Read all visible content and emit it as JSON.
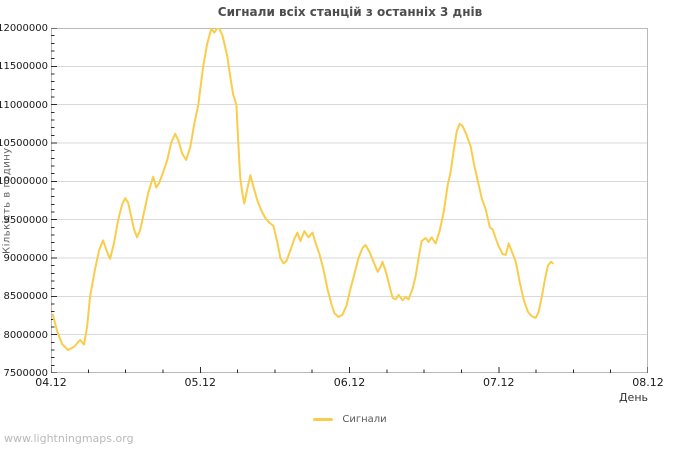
{
  "title": "Сигнали всіх станцій з останніх 3 днів",
  "watermark": "www.lightningmaps.org",
  "legend": {
    "label": "Сигнали"
  },
  "chart_data": {
    "type": "line",
    "title": "Сигнали всіх станцій з останніх 3 днів",
    "xlabel": "День",
    "ylabel": "Кількість в годину",
    "x_ticks": [
      "04.12",
      "05.12",
      "06.12",
      "07.12",
      "08.12"
    ],
    "x_minor_per_major": 4,
    "ylim": [
      7500000,
      12000000
    ],
    "y_tick_step": 500000,
    "y_minor_step": 100000,
    "grid": "horizontal-only",
    "legend_position": "bottom-center",
    "series": [
      {
        "name": "Сигнали",
        "color": "#f9cd4c",
        "x_unit": "days-after-04.12",
        "points": [
          [
            0.013,
            8260000
          ],
          [
            0.04,
            8050000
          ],
          [
            0.074,
            7880000
          ],
          [
            0.114,
            7800000
          ],
          [
            0.154,
            7840000
          ],
          [
            0.195,
            7930000
          ],
          [
            0.221,
            7870000
          ],
          [
            0.242,
            8100000
          ],
          [
            0.262,
            8500000
          ],
          [
            0.295,
            8850000
          ],
          [
            0.322,
            9100000
          ],
          [
            0.349,
            9230000
          ],
          [
            0.376,
            9080000
          ],
          [
            0.396,
            8990000
          ],
          [
            0.423,
            9200000
          ],
          [
            0.45,
            9500000
          ],
          [
            0.477,
            9700000
          ],
          [
            0.497,
            9780000
          ],
          [
            0.517,
            9720000
          ],
          [
            0.537,
            9550000
          ],
          [
            0.557,
            9370000
          ],
          [
            0.577,
            9270000
          ],
          [
            0.597,
            9360000
          ],
          [
            0.624,
            9600000
          ],
          [
            0.651,
            9850000
          ],
          [
            0.685,
            10060000
          ],
          [
            0.705,
            9920000
          ],
          [
            0.725,
            9980000
          ],
          [
            0.752,
            10120000
          ],
          [
            0.779,
            10280000
          ],
          [
            0.805,
            10500000
          ],
          [
            0.832,
            10620000
          ],
          [
            0.852,
            10540000
          ],
          [
            0.879,
            10360000
          ],
          [
            0.906,
            10280000
          ],
          [
            0.933,
            10450000
          ],
          [
            0.96,
            10750000
          ],
          [
            0.987,
            11000000
          ],
          [
            1.02,
            11500000
          ],
          [
            1.047,
            11800000
          ],
          [
            1.074,
            11990000
          ],
          [
            1.094,
            11940000
          ],
          [
            1.121,
            12020000
          ],
          [
            1.148,
            11910000
          ],
          [
            1.181,
            11630000
          ],
          [
            1.201,
            11370000
          ],
          [
            1.221,
            11130000
          ],
          [
            1.242,
            11000000
          ],
          [
            1.255,
            10500000
          ],
          [
            1.268,
            10050000
          ],
          [
            1.282,
            9850000
          ],
          [
            1.295,
            9710000
          ],
          [
            1.315,
            9900000
          ],
          [
            1.336,
            10080000
          ],
          [
            1.356,
            9930000
          ],
          [
            1.383,
            9750000
          ],
          [
            1.409,
            9620000
          ],
          [
            1.436,
            9520000
          ],
          [
            1.463,
            9460000
          ],
          [
            1.49,
            9420000
          ],
          [
            1.517,
            9200000
          ],
          [
            1.537,
            9000000
          ],
          [
            1.557,
            8930000
          ],
          [
            1.577,
            8960000
          ],
          [
            1.604,
            9100000
          ],
          [
            1.631,
            9250000
          ],
          [
            1.651,
            9330000
          ],
          [
            1.671,
            9220000
          ],
          [
            1.698,
            9350000
          ],
          [
            1.725,
            9270000
          ],
          [
            1.752,
            9330000
          ],
          [
            1.772,
            9200000
          ],
          [
            1.799,
            9050000
          ],
          [
            1.826,
            8850000
          ],
          [
            1.852,
            8600000
          ],
          [
            1.879,
            8400000
          ],
          [
            1.899,
            8280000
          ],
          [
            1.926,
            8230000
          ],
          [
            1.953,
            8260000
          ],
          [
            1.98,
            8380000
          ],
          [
            2.007,
            8600000
          ],
          [
            2.034,
            8800000
          ],
          [
            2.06,
            9000000
          ],
          [
            2.087,
            9130000
          ],
          [
            2.107,
            9170000
          ],
          [
            2.134,
            9080000
          ],
          [
            2.161,
            8950000
          ],
          [
            2.188,
            8820000
          ],
          [
            2.208,
            8880000
          ],
          [
            2.221,
            8950000
          ],
          [
            2.242,
            8830000
          ],
          [
            2.262,
            8680000
          ],
          [
            2.289,
            8480000
          ],
          [
            2.309,
            8460000
          ],
          [
            2.329,
            8520000
          ],
          [
            2.356,
            8450000
          ],
          [
            2.376,
            8490000
          ],
          [
            2.396,
            8460000
          ],
          [
            2.423,
            8600000
          ],
          [
            2.443,
            8760000
          ],
          [
            2.463,
            9000000
          ],
          [
            2.483,
            9220000
          ],
          [
            2.51,
            9260000
          ],
          [
            2.53,
            9210000
          ],
          [
            2.55,
            9270000
          ],
          [
            2.577,
            9190000
          ],
          [
            2.604,
            9350000
          ],
          [
            2.631,
            9600000
          ],
          [
            2.658,
            9950000
          ],
          [
            2.678,
            10130000
          ],
          [
            2.698,
            10400000
          ],
          [
            2.718,
            10650000
          ],
          [
            2.738,
            10750000
          ],
          [
            2.758,
            10720000
          ],
          [
            2.785,
            10600000
          ],
          [
            2.812,
            10450000
          ],
          [
            2.839,
            10180000
          ],
          [
            2.866,
            9950000
          ],
          [
            2.886,
            9780000
          ],
          [
            2.913,
            9630000
          ],
          [
            2.94,
            9400000
          ],
          [
            2.96,
            9370000
          ],
          [
            2.98,
            9250000
          ],
          [
            3.0,
            9150000
          ],
          [
            3.027,
            9050000
          ],
          [
            3.047,
            9040000
          ],
          [
            3.067,
            9190000
          ],
          [
            3.094,
            9050000
          ],
          [
            3.114,
            8950000
          ],
          [
            3.141,
            8680000
          ],
          [
            3.168,
            8450000
          ],
          [
            3.195,
            8300000
          ],
          [
            3.221,
            8240000
          ],
          [
            3.248,
            8220000
          ],
          [
            3.268,
            8300000
          ],
          [
            3.289,
            8500000
          ],
          [
            3.309,
            8720000
          ],
          [
            3.329,
            8900000
          ],
          [
            3.349,
            8950000
          ],
          [
            3.362,
            8930000
          ]
        ]
      }
    ],
    "colors": {
      "line": "#f9cd4c",
      "grid": "#d9d9d9",
      "frame": "#b9b9b9",
      "tick": "#2b2b2b",
      "title_text": "#4d4d4d",
      "watermark_text": "#b9b9b9"
    }
  }
}
